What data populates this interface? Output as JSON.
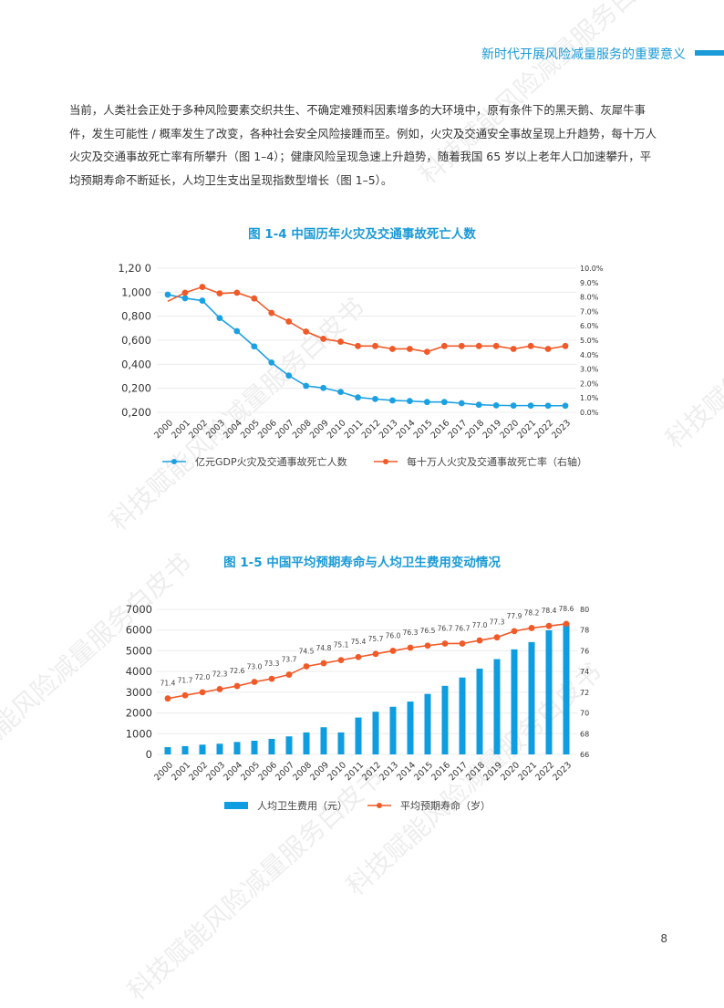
{
  "header": {
    "title": "新时代开展风险减量服务的重要意义",
    "accent": "#1a9ad6"
  },
  "body_text": "当前，人类社会正处于多种风险要素交织共生、不确定难预料因素增多的大环境中，原有条件下的黑天鹅、灰犀牛事件，发生可能性 / 概率发生了改变，各种社会安全风险接踵而至。例如，火灾及交通安全事故呈现上升趋势，每十万人火灾及交通事故死亡率有所攀升（图 1–4）；健康风险呈现急速上升趋势，随着我国 65 岁以上老年人口加速攀升，平均预期寿命不断延长，人均卫生支出呈现指数型增长（图 1–5）。",
  "watermark": "科技赋能风险减量服务白皮书",
  "page_number": "8",
  "chart_data": [
    {
      "type": "line",
      "title": "图 1-4  中国历年火灾及交通事故死亡人数",
      "categories": [
        "2000",
        "2001",
        "2002",
        "2003",
        "2004",
        "2005",
        "2006",
        "2007",
        "2008",
        "2009",
        "2010",
        "2011",
        "2012",
        "2013",
        "2014",
        "2015",
        "2016",
        "2017",
        "2018",
        "2019",
        "2020",
        "2021",
        "2022",
        "2023"
      ],
      "left_ticks": [
        "1,20 0",
        "1,000",
        "0,800",
        "0,600",
        "0,400",
        "0,200",
        "0,200"
      ],
      "ylim": [
        0,
        1.2
      ],
      "right_ticks": [
        "10.0%",
        "9.0%",
        "8.0%",
        "7.0%",
        "6.0%",
        "5.0%",
        "4.0%",
        "3.0%",
        "2.0%",
        "1.0%",
        "0.0%"
      ],
      "y2lim": [
        0,
        10
      ],
      "grid": true,
      "legend_position": "bottom",
      "series": [
        {
          "name": "亿元GDP火灾及交通事故死亡人数",
          "axis": "left",
          "color": "#1ba1e2",
          "values": [
            0.98,
            0.95,
            0.93,
            0.785,
            0.676,
            0.549,
            0.415,
            0.306,
            0.22,
            0.203,
            0.17,
            0.124,
            0.111,
            0.099,
            0.094,
            0.086,
            0.086,
            0.076,
            0.063,
            0.058,
            0.056,
            0.056,
            0.055,
            0.055
          ]
        },
        {
          "name": "每十万人火灾及交通事故死亡率（右轴）",
          "axis": "right",
          "color": "#f05a28",
          "values": [
            7.7,
            8.3,
            8.7,
            8.25,
            8.3,
            7.9,
            6.9,
            6.3,
            5.6,
            5.1,
            4.9,
            4.6,
            4.6,
            4.4,
            4.4,
            4.2,
            4.6,
            4.6,
            4.6,
            4.6,
            4.4,
            4.6,
            4.4,
            4.6
          ]
        }
      ]
    },
    {
      "type": "bar+line",
      "title": "图 1-5  中国平均预期寿命与人均卫生费用变动情况",
      "categories": [
        "2000",
        "2001",
        "2002",
        "2003",
        "2004",
        "2005",
        "2006",
        "2007",
        "2008",
        "2009",
        "2010",
        "2011",
        "2012",
        "2013",
        "2014",
        "2015",
        "2016",
        "2017",
        "2018",
        "2019",
        "2020",
        "2021",
        "2022",
        "2023"
      ],
      "left_ticks": [
        "7000",
        "6000",
        "5000",
        "4000",
        "3000",
        "2000",
        "1000",
        "0"
      ],
      "ylim": [
        0,
        7000
      ],
      "right_ticks": [
        "80",
        "78",
        "76",
        "74",
        "72",
        "70",
        "68",
        "66"
      ],
      "y2lim": [
        66,
        80
      ],
      "grid": true,
      "legend_position": "bottom",
      "series": [
        {
          "name": "人均卫生费用（元）",
          "type": "bar",
          "axis": "left",
          "color": "#0e9de0",
          "values": [
            350,
            400,
            470,
            515,
            600,
            660,
            750,
            870,
            1060,
            1310,
            1060,
            1780,
            2060,
            2300,
            2550,
            2920,
            3310,
            3710,
            4140,
            4600,
            5070,
            5420,
            5990,
            6330
          ]
        },
        {
          "name": "平均预期寿命（岁）",
          "type": "line",
          "axis": "right",
          "color": "#f05a28",
          "values": [
            71.4,
            71.7,
            72.0,
            72.3,
            72.6,
            73.0,
            73.3,
            73.7,
            74.5,
            74.8,
            75.1,
            75.4,
            75.7,
            76.0,
            76.3,
            76.5,
            76.7,
            76.7,
            77.0,
            77.3,
            77.9,
            78.2,
            78.4,
            78.6
          ],
          "labels": [
            "71.4",
            "71.7",
            "72.0",
            "72.3",
            "72.6",
            "73.0",
            "73.3",
            "73.7",
            "74.5",
            "74.8",
            "75.1",
            "75.4",
            "75.7",
            "76.0",
            "76.3",
            "76.5",
            "76.7",
            "76.7",
            "77.0",
            "77.3",
            "77.9",
            "78.2",
            "78.4",
            "78.6"
          ]
        }
      ]
    }
  ]
}
